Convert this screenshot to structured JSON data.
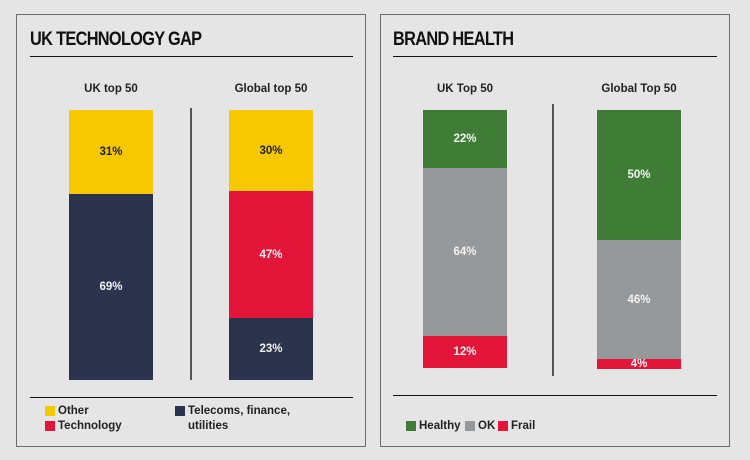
{
  "colors": {
    "other": "#f5c800",
    "technology": "#e3163a",
    "telecoms": "#2b344c",
    "healthy": "#3f7d36",
    "ok": "#96999b",
    "frail": "#e3163a"
  },
  "chart_data": [
    {
      "type": "bar",
      "stacked": true,
      "title": "UK TECHNOLOGY GAP",
      "categories": [
        "UK top 50",
        "Global top 50"
      ],
      "series": [
        {
          "name": "Telecoms, finance, utilities",
          "values": [
            69,
            23
          ],
          "labels": [
            "69%",
            "23%"
          ]
        },
        {
          "name": "Technology",
          "values": [
            0,
            47
          ],
          "labels": [
            "",
            "47%"
          ]
        },
        {
          "name": "Other",
          "values": [
            31,
            30
          ],
          "labels": [
            "31%",
            "30%"
          ]
        }
      ],
      "legend": [
        "Other",
        "Technology",
        "Telecoms, finance, utilities"
      ],
      "legend_lines": {
        "telecoms_line1": "Telecoms, finance,",
        "telecoms_line2": "utilities"
      },
      "legend_position": "bottom",
      "unit": "%",
      "ylim": [
        0,
        100
      ]
    },
    {
      "type": "bar",
      "stacked": true,
      "title": "BRAND HEALTH",
      "categories": [
        "UK Top 50",
        "Global Top 50"
      ],
      "series": [
        {
          "name": "Frail",
          "values": [
            12,
            4
          ],
          "labels": [
            "12%",
            "4%"
          ]
        },
        {
          "name": "OK",
          "values": [
            64,
            46
          ],
          "labels": [
            "64%",
            "46%"
          ]
        },
        {
          "name": "Healthy",
          "values": [
            22,
            50
          ],
          "labels": [
            "22%",
            "50%"
          ]
        }
      ],
      "legend": [
        "Healthy",
        "OK",
        "Frail"
      ],
      "legend_position": "bottom",
      "unit": "%",
      "ylim": [
        0,
        100
      ]
    }
  ]
}
